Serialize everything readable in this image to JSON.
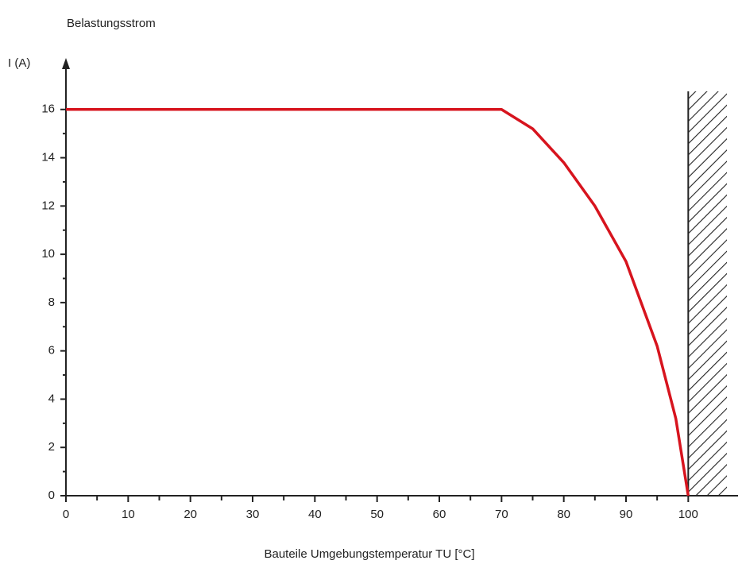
{
  "chart_data": {
    "type": "line",
    "title": "Belastungsstrom",
    "ylabel": "I (A)",
    "xlabel": "Bauteile Umgebungstemperatur TU [°C]",
    "x": [
      0,
      70,
      75,
      80,
      85,
      90,
      95,
      98,
      100
    ],
    "series": [
      {
        "color": "#d7141e",
        "values": [
          16,
          16,
          15.2,
          13.8,
          12.0,
          9.7,
          6.2,
          3.2,
          0
        ]
      }
    ],
    "xlim": [
      0,
      108
    ],
    "xticks": [
      0,
      10,
      20,
      30,
      40,
      50,
      60,
      70,
      80,
      90,
      100
    ],
    "xminorticks": [
      5,
      15,
      25,
      35,
      45,
      55,
      65,
      75,
      85,
      95
    ],
    "ylim": [
      0,
      18
    ],
    "yticks": [
      0,
      2,
      4,
      6,
      8,
      10,
      12,
      14,
      16
    ],
    "yminorticks": [
      1,
      3,
      5,
      7,
      9,
      11,
      13,
      15
    ],
    "grid": false
  }
}
